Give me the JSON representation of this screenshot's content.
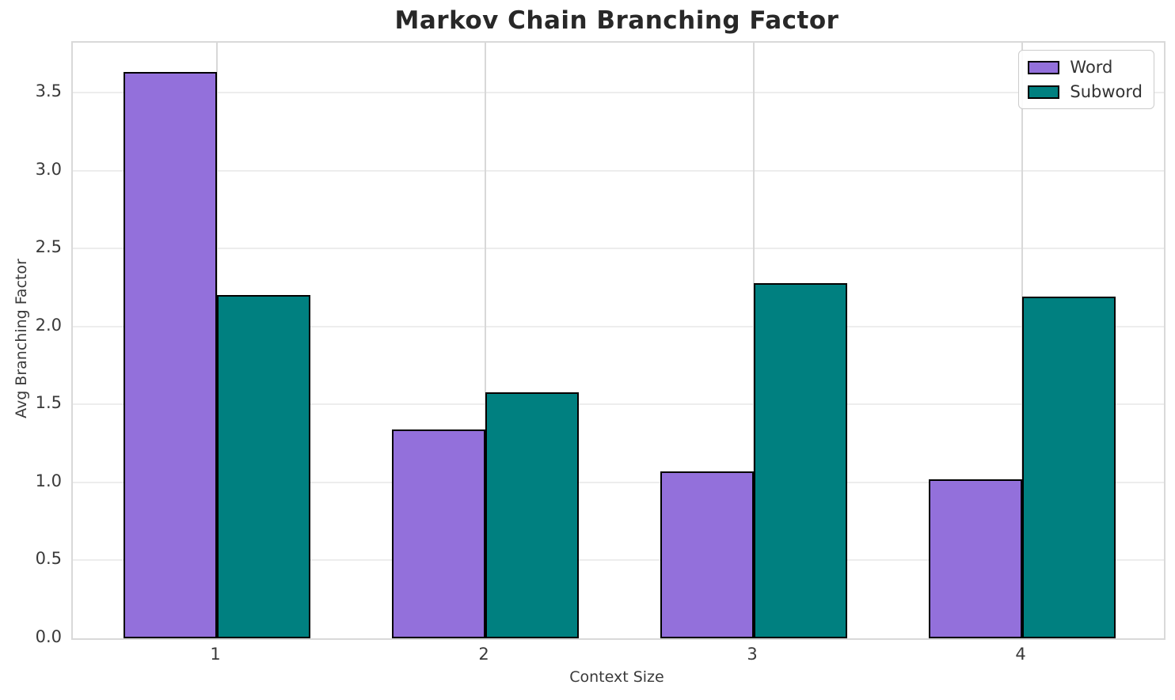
{
  "chart_data": {
    "type": "bar",
    "title": "Markov Chain Branching Factor",
    "xlabel": "Context Size",
    "ylabel": "Avg Branching Factor",
    "categories": [
      "1",
      "2",
      "3",
      "4"
    ],
    "series": [
      {
        "name": "Word",
        "color": "#9370DB",
        "values": [
          3.63,
          1.34,
          1.07,
          1.02
        ]
      },
      {
        "name": "Subword",
        "color": "#008080",
        "values": [
          2.2,
          1.58,
          2.28,
          2.19
        ]
      }
    ],
    "ylim": [
      0,
      3.82
    ],
    "y_ticks": [
      0.0,
      0.5,
      1.0,
      1.5,
      2.0,
      2.5,
      3.0,
      3.5
    ],
    "y_tick_labels": [
      "0.0",
      "0.5",
      "1.0",
      "1.5",
      "2.0",
      "2.5",
      "3.0",
      "3.5"
    ],
    "grid": true,
    "legend_position": "upper right",
    "bar_edge_color": "#000000"
  }
}
